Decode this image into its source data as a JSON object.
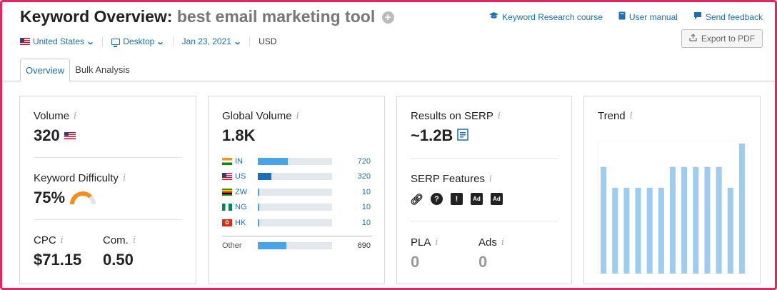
{
  "header": {
    "title_prefix": "Keyword Overview:",
    "keyword": "best email marketing tool",
    "links": [
      {
        "label": "Keyword Research course",
        "icon": "graduation-cap-icon"
      },
      {
        "label": "User manual",
        "icon": "book-icon"
      },
      {
        "label": "Send feedback",
        "icon": "speech-bubble-icon"
      }
    ],
    "export_label": "Export to PDF"
  },
  "filters": {
    "country": "United States",
    "device": "Desktop",
    "date": "Jan 23, 2021",
    "currency": "USD"
  },
  "tabs": [
    {
      "label": "Overview",
      "active": true
    },
    {
      "label": "Bulk Analysis",
      "active": false
    }
  ],
  "volume_card": {
    "volume_label": "Volume",
    "volume_value": "320",
    "kd_label": "Keyword Difficulty",
    "kd_value": "75%",
    "kd_fraction": 0.75,
    "kd_color": "#f58d1f",
    "cpc_label": "CPC",
    "cpc_value": "$71.15",
    "com_label": "Com.",
    "com_value": "0.50"
  },
  "global_card": {
    "label": "Global Volume",
    "value": "1.8K",
    "rows": [
      {
        "code": "IN",
        "value": "720",
        "fraction": 0.4,
        "flag": "in"
      },
      {
        "code": "US",
        "value": "320",
        "fraction": 0.18,
        "flag": "us"
      },
      {
        "code": "ZW",
        "value": "10",
        "fraction": 0.02,
        "flag": "zw"
      },
      {
        "code": "NG",
        "value": "10",
        "fraction": 0.02,
        "flag": "ng"
      },
      {
        "code": "HK",
        "value": "10",
        "fraction": 0.02,
        "flag": "hk"
      }
    ],
    "other": {
      "label": "Other",
      "value": "690",
      "fraction": 0.38
    }
  },
  "serp_card": {
    "results_label": "Results on SERP",
    "results_value": "~1.2B",
    "features_label": "SERP Features",
    "features": [
      "link-icon",
      "question-icon",
      "exclamation-icon",
      "ad-top-icon",
      "ad-bottom-icon"
    ],
    "pla_label": "PLA",
    "pla_value": "0",
    "ads_label": "Ads",
    "ads_value": "0"
  },
  "trend_card": {
    "label": "Trend",
    "values": [
      0.82,
      0.66,
      0.66,
      0.66,
      0.66,
      0.66,
      0.82,
      0.82,
      0.82,
      0.82,
      0.82,
      0.66,
      1.0
    ],
    "bar_color": "#9fcbee"
  },
  "colors": {
    "accent": "#1a6fb5",
    "frame": "#e8245e",
    "bar_dark": "#1a6fb5",
    "bar_light": "#4aa3e6"
  }
}
